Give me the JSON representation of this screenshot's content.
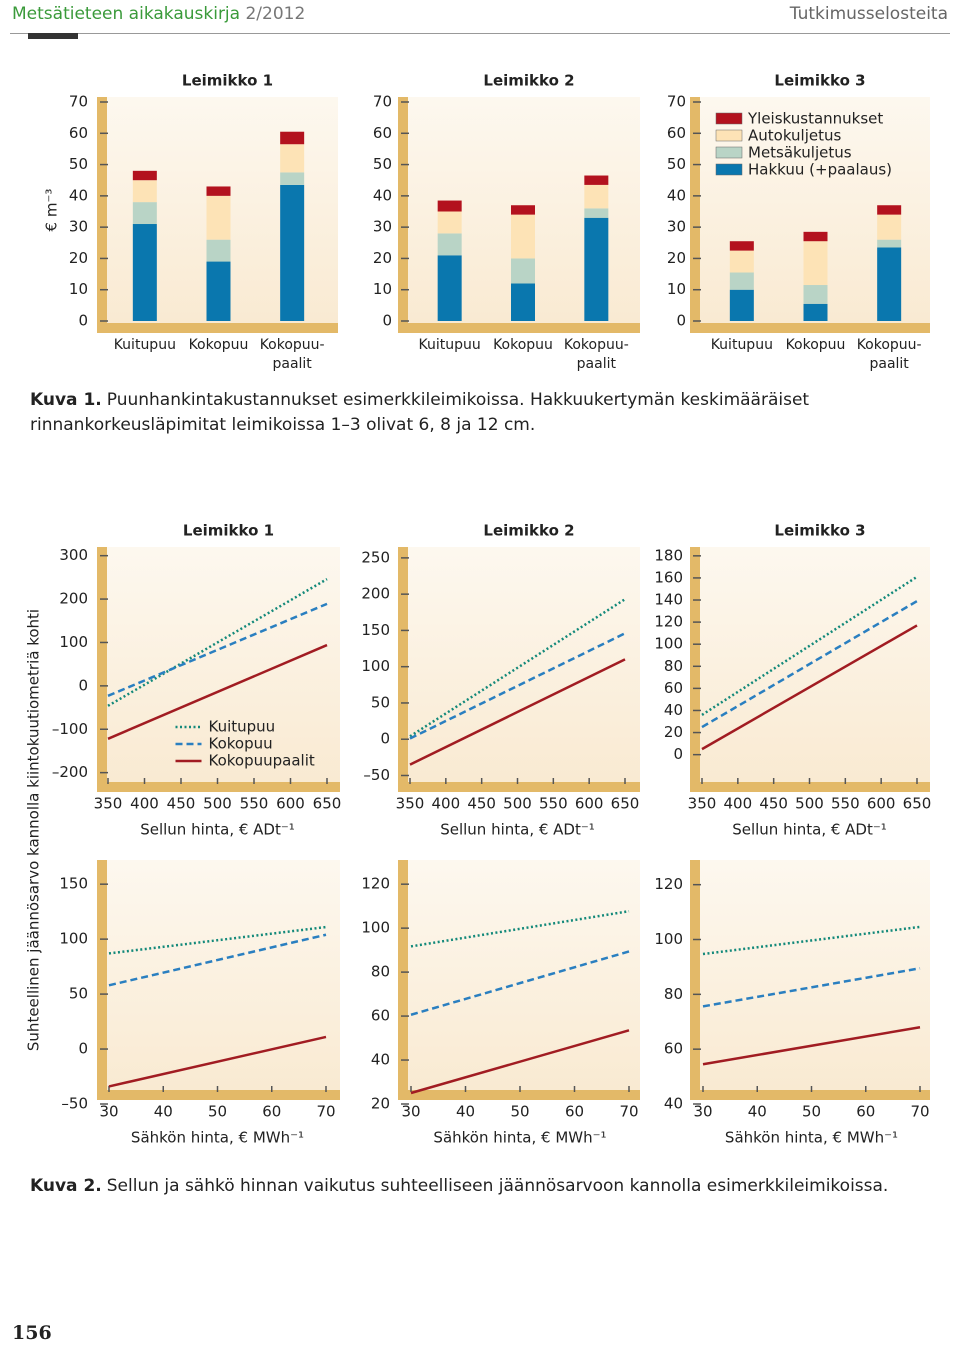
{
  "header": {
    "journal": "Metsätieteen aikakauskirja",
    "issue": "2/2012",
    "section": "Tutkimusselosteita"
  },
  "chart_data": [
    {
      "type": "bar",
      "stacked": true,
      "title": "Leimikko 1",
      "ylabel": "€ m⁻³",
      "categories": [
        "Kuitupuu",
        "Kokopuu",
        "Kokopuu-paalit"
      ],
      "series": [
        {
          "color": "#0a77ae",
          "values": [
            31,
            19,
            43.5
          ]
        },
        {
          "color": "#b9d4c6",
          "values": [
            7,
            7,
            4
          ]
        },
        {
          "color": "#fde3b6",
          "values": [
            7,
            14,
            9
          ]
        },
        {
          "color": "#b3121e",
          "values": [
            3,
            3,
            4
          ]
        }
      ],
      "ylim": [
        0,
        70
      ],
      "yticks": [
        0,
        10,
        20,
        30,
        40,
        50,
        60,
        70
      ]
    },
    {
      "type": "bar",
      "stacked": true,
      "title": "Leimikko 2",
      "categories": [
        "Kuitupuu",
        "Kokopuu",
        "Kokopuu-paalit"
      ],
      "series": [
        {
          "color": "#0a77ae",
          "values": [
            21,
            12,
            33
          ]
        },
        {
          "color": "#b9d4c6",
          "values": [
            7,
            8,
            3
          ]
        },
        {
          "color": "#fde3b6",
          "values": [
            7,
            14,
            7.5
          ]
        },
        {
          "color": "#b3121e",
          "values": [
            3.5,
            3,
            3
          ]
        }
      ],
      "ylim": [
        0,
        70
      ],
      "yticks": [
        0,
        10,
        20,
        30,
        40,
        50,
        60,
        70
      ]
    },
    {
      "type": "bar",
      "stacked": true,
      "title": "Leimikko 3",
      "categories": [
        "Kuitupuu",
        "Kokopuu",
        "Kokopuu-paalit"
      ],
      "legend": "upper right",
      "series": [
        {
          "name": "Hakkuu (+paalaus)",
          "color": "#0a77ae",
          "values": [
            10,
            5.5,
            23.5
          ]
        },
        {
          "name": "Metsäkuljetus",
          "color": "#b9d4c6",
          "values": [
            5.5,
            6,
            2.5
          ]
        },
        {
          "name": "Autokuljetus",
          "color": "#fde3b6",
          "values": [
            7,
            14,
            8
          ]
        },
        {
          "name": "Yleiskustannukset",
          "color": "#b3121e",
          "values": [
            3,
            3,
            3
          ]
        }
      ],
      "ylim": [
        0,
        70
      ],
      "yticks": [
        0,
        10,
        20,
        30,
        40,
        50,
        60,
        70
      ]
    },
    {
      "type": "line",
      "title": "Leimikko 1",
      "xlabel": "Sellun hinta, € ADt⁻¹",
      "x": [
        350,
        650
      ],
      "legend": "lower center",
      "series": [
        {
          "name": "Kuitupuu",
          "color": "#13897a",
          "style": "dotted",
          "values": [
            -46,
            246
          ]
        },
        {
          "name": "Kokopuu",
          "color": "#2a7fc0",
          "style": "dashed",
          "values": [
            -23,
            189
          ]
        },
        {
          "name": "Kokopuupaalit",
          "color": "#a11c22",
          "style": "solid",
          "values": [
            -122,
            94
          ]
        }
      ],
      "xlim": [
        350,
        650
      ],
      "xticks": [
        350,
        400,
        450,
        500,
        550,
        600,
        650
      ],
      "ylim": [
        -240,
        320
      ],
      "yticks": [
        {
          "value": -200,
          "label": "–200"
        },
        {
          "value": -100,
          "label": "–100"
        },
        0,
        100,
        200,
        300
      ]
    },
    {
      "type": "line",
      "title": "Leimikko 2",
      "xlabel": "Sellun hinta, € ADt⁻¹",
      "x": [
        350,
        650
      ],
      "series": [
        {
          "color": "#13897a",
          "style": "dotted",
          "values": [
            4,
            193
          ]
        },
        {
          "color": "#2a7fc0",
          "style": "dashed",
          "values": [
            1,
            146
          ]
        },
        {
          "color": "#a11c22",
          "style": "solid",
          "values": [
            -35,
            110
          ]
        }
      ],
      "xlim": [
        350,
        650
      ],
      "xticks": [
        350,
        400,
        450,
        500,
        550,
        600,
        650
      ],
      "ylim": [
        -70,
        265
      ],
      "yticks": [
        {
          "value": -50,
          "label": "–50"
        },
        0,
        50,
        100,
        150,
        200,
        250
      ]
    },
    {
      "type": "line",
      "title": "Leimikko 3",
      "xlabel": "Sellun hinta, € ADt⁻¹",
      "x": [
        350,
        650
      ],
      "series": [
        {
          "color": "#13897a",
          "style": "dotted",
          "values": [
            36,
            161
          ]
        },
        {
          "color": "#2a7fc0",
          "style": "dashed",
          "values": [
            25,
            139
          ]
        },
        {
          "color": "#a11c22",
          "style": "solid",
          "values": [
            5,
            117
          ]
        }
      ],
      "xlim": [
        350,
        650
      ],
      "xticks": [
        350,
        400,
        450,
        500,
        550,
        600,
        650
      ],
      "ylim": [
        -32,
        188
      ],
      "yticks": [
        0,
        20,
        40,
        60,
        80,
        100,
        120,
        140,
        160,
        180
      ]
    },
    {
      "type": "line",
      "xlabel": "Sähkön hinta, € MWh⁻¹",
      "x": [
        30,
        70
      ],
      "series": [
        {
          "color": "#13897a",
          "style": "dotted",
          "values": [
            87,
            111
          ]
        },
        {
          "color": "#2a7fc0",
          "style": "dashed",
          "values": [
            58,
            104
          ]
        },
        {
          "color": "#a11c22",
          "style": "solid",
          "values": [
            -34,
            11
          ]
        }
      ],
      "xlim": [
        30,
        70
      ],
      "xticks": [
        30,
        40,
        50,
        60,
        70
      ],
      "ylim": [
        -50,
        172
      ],
      "yticks": [
        {
          "value": -50,
          "label": "–50"
        },
        0,
        50,
        100,
        150
      ]
    },
    {
      "type": "line",
      "xlabel": "Sähkön hinta, € MWh⁻¹",
      "x": [
        30,
        70
      ],
      "series": [
        {
          "color": "#13897a",
          "style": "dotted",
          "values": [
            91.7,
            107.7
          ]
        },
        {
          "color": "#2a7fc0",
          "style": "dashed",
          "values": [
            60.6,
            89.4
          ]
        },
        {
          "color": "#a11c22",
          "style": "solid",
          "values": [
            25,
            53.5
          ]
        }
      ],
      "xlim": [
        30,
        70
      ],
      "xticks": [
        30,
        40,
        50,
        60,
        70
      ],
      "ylim": [
        20,
        131
      ],
      "yticks": [
        20,
        40,
        60,
        80,
        100,
        120
      ]
    },
    {
      "type": "line",
      "xlabel": "Sähkön hinta, € MWh⁻¹",
      "x": [
        30,
        70
      ],
      "series": [
        {
          "color": "#13897a",
          "style": "dotted",
          "values": [
            94.7,
            104.6
          ]
        },
        {
          "color": "#2a7fc0",
          "style": "dashed",
          "values": [
            75.6,
            89.5
          ]
        },
        {
          "color": "#a11c22",
          "style": "solid",
          "values": [
            54.5,
            68
          ]
        }
      ],
      "xlim": [
        30,
        70
      ],
      "xticks": [
        30,
        40,
        50,
        60,
        70
      ],
      "ylim": [
        40,
        129
      ],
      "yticks": [
        40,
        60,
        80,
        100,
        120
      ]
    }
  ],
  "figure2_ylabel": "Suhteellinen jäännösarvo kannolla kiintokuutiometriä kohti",
  "captions": [
    {
      "label": "Kuva 1.",
      "text": "Puunhankintakustannukset esimerkkileimikoissa. Hakkuukertymän keskimääräiset rinnankorkeusläpimitat leimikoissa 1–3 olivat 6, 8 ja 12 cm."
    },
    {
      "label": "Kuva 2.",
      "text": "Sellun ja sähkö hinnan vaikutus suhteelliseen jäännösarvoon kannolla esimerkkileimikoissa."
    }
  ],
  "page_number": "156"
}
